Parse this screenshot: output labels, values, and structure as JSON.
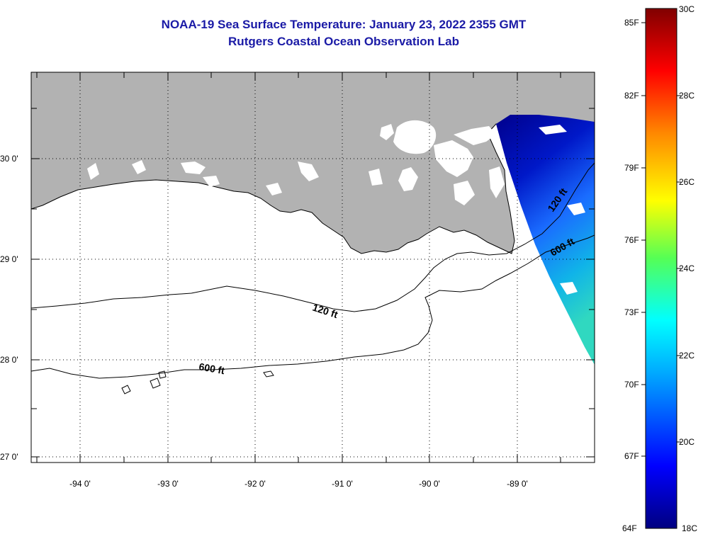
{
  "title": {
    "line1": "NOAA-19 Sea Surface Temperature:  January 23, 2022 2355 GMT",
    "line2": "Rutgers Coastal Ocean Observation Lab"
  },
  "map": {
    "lon_ticks": [
      "-94 0'",
      "-93 0'",
      "-92 0'",
      "-91 0'",
      "-90 0'",
      "-89 0'"
    ],
    "lat_ticks": [
      "30 0'",
      "29 0'",
      "28 0'",
      "27 0'"
    ],
    "contours": [
      "120 ft",
      "600 ft"
    ],
    "colors": {
      "land": "#b2b2b2",
      "frame": "#000000",
      "grid": "#000000"
    }
  },
  "colorbar": {
    "fahrenheit_labels": [
      "85F",
      "82F",
      "79F",
      "76F",
      "73F",
      "70F",
      "67F",
      "64F"
    ],
    "celsius_labels": [
      "30C",
      "28C",
      "26C",
      "24C",
      "22C",
      "20C",
      "18C"
    ],
    "range_c": [
      18,
      30
    ],
    "colors": [
      "#000080",
      "#0000ff",
      "#00aaff",
      "#00ffff",
      "#55ff55",
      "#ffff00",
      "#ff8800",
      "#ff0000",
      "#800000"
    ]
  }
}
